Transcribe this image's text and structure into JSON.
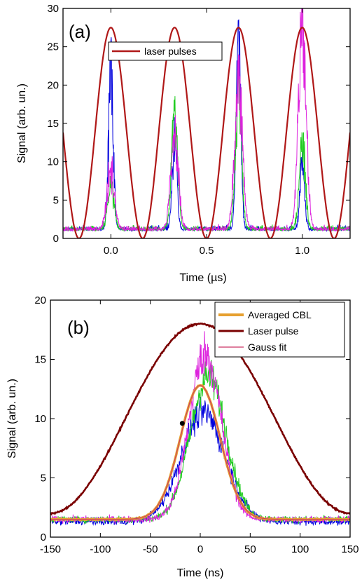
{
  "colors": {
    "laser": "#b01818",
    "laser_b": "#7a0000",
    "blue": "#0000dd",
    "green": "#22cc22",
    "magenta": "#dd22dd",
    "orange": "#e6a030",
    "gauss": "#cc3366"
  },
  "chart_data": [
    {
      "type": "line",
      "panel_label": "(a)",
      "xlabel": "Time (µs)",
      "ylabel": "Signal (arb. un.)",
      "xlim": [
        -0.25,
        1.25
      ],
      "ylim": [
        0,
        30
      ],
      "xticks": [
        0.0,
        0.5,
        1.0
      ],
      "xtick_labels": [
        "0.0",
        "0.5",
        "1.0"
      ],
      "yticks": [
        0,
        5,
        10,
        15,
        20,
        25,
        30
      ],
      "ytick_labels": [
        "0",
        "5",
        "10",
        "15",
        "20",
        "25",
        "30"
      ],
      "legend": {
        "placement": "top-center",
        "entries": [
          "laser pulses"
        ]
      },
      "grid": false,
      "series": [
        {
          "name": "laser pulses",
          "description": "periodic pulse train, period 0.333 µs, peaks ~27.5 at 0, 0.333, 0.667, 1.0",
          "peak_times": [
            0.0,
            0.333,
            0.667,
            1.0
          ],
          "peak_value": 27.5,
          "baseline": 0
        },
        {
          "color": "blue",
          "peak_times": [
            0.0,
            0.333,
            0.667,
            1.0
          ],
          "peak_values": [
            22,
            13,
            24,
            9
          ],
          "baseline": 1
        },
        {
          "color": "green",
          "peak_times": [
            0.0,
            0.333,
            0.667,
            1.0
          ],
          "peak_values": [
            7,
            16,
            19,
            12
          ],
          "baseline": 1
        },
        {
          "color": "magenta",
          "peak_times": [
            0.0,
            0.333,
            0.667,
            1.0
          ],
          "peak_values": [
            8,
            13,
            21,
            27
          ],
          "baseline": 1
        }
      ]
    },
    {
      "type": "line",
      "panel_label": "(b)",
      "xlabel": "Time (ns)",
      "ylabel": "Signal (arb. un.)",
      "xlim": [
        -150,
        150
      ],
      "ylim": [
        0,
        20
      ],
      "xticks": [
        -150,
        -100,
        -50,
        0,
        50,
        100,
        150
      ],
      "xtick_labels": [
        "-150",
        "-100",
        "-50",
        "0",
        "50",
        "100",
        "150"
      ],
      "yticks": [
        0,
        5,
        10,
        15,
        20
      ],
      "ytick_labels": [
        "0",
        "5",
        "10",
        "15",
        "20"
      ],
      "legend": {
        "placement": "top-right",
        "entries": [
          "Averaged CBL",
          "Laser pulse",
          "Gauss fit"
        ]
      },
      "grid": false,
      "series": [
        {
          "name": "Laser pulse",
          "description": "broad pulse peaking ~18 at t=0, ~2 at ±150 ns",
          "peak": 18,
          "edge_value": 2
        },
        {
          "name": "Averaged CBL",
          "description": "gaussian-like, baseline 1.5, peak 12.8 at t≈0",
          "baseline": 1.5,
          "peak": 12.8,
          "center": 0,
          "sigma": 20
        },
        {
          "name": "Gauss fit",
          "baseline": 1.5,
          "peak": 12.8,
          "center": 0,
          "sigma": 20
        },
        {
          "color": "blue",
          "baseline": 1.3,
          "peak": 10.5,
          "center": 3,
          "sigma": 22
        },
        {
          "color": "green",
          "baseline": 1.5,
          "peak": 13.5,
          "center": 8,
          "sigma": 18
        },
        {
          "color": "magenta",
          "baseline": 1.5,
          "peak": 15.5,
          "center": 5,
          "sigma": 16
        }
      ],
      "marker_point": {
        "x": -18,
        "y": 9.6
      }
    }
  ]
}
